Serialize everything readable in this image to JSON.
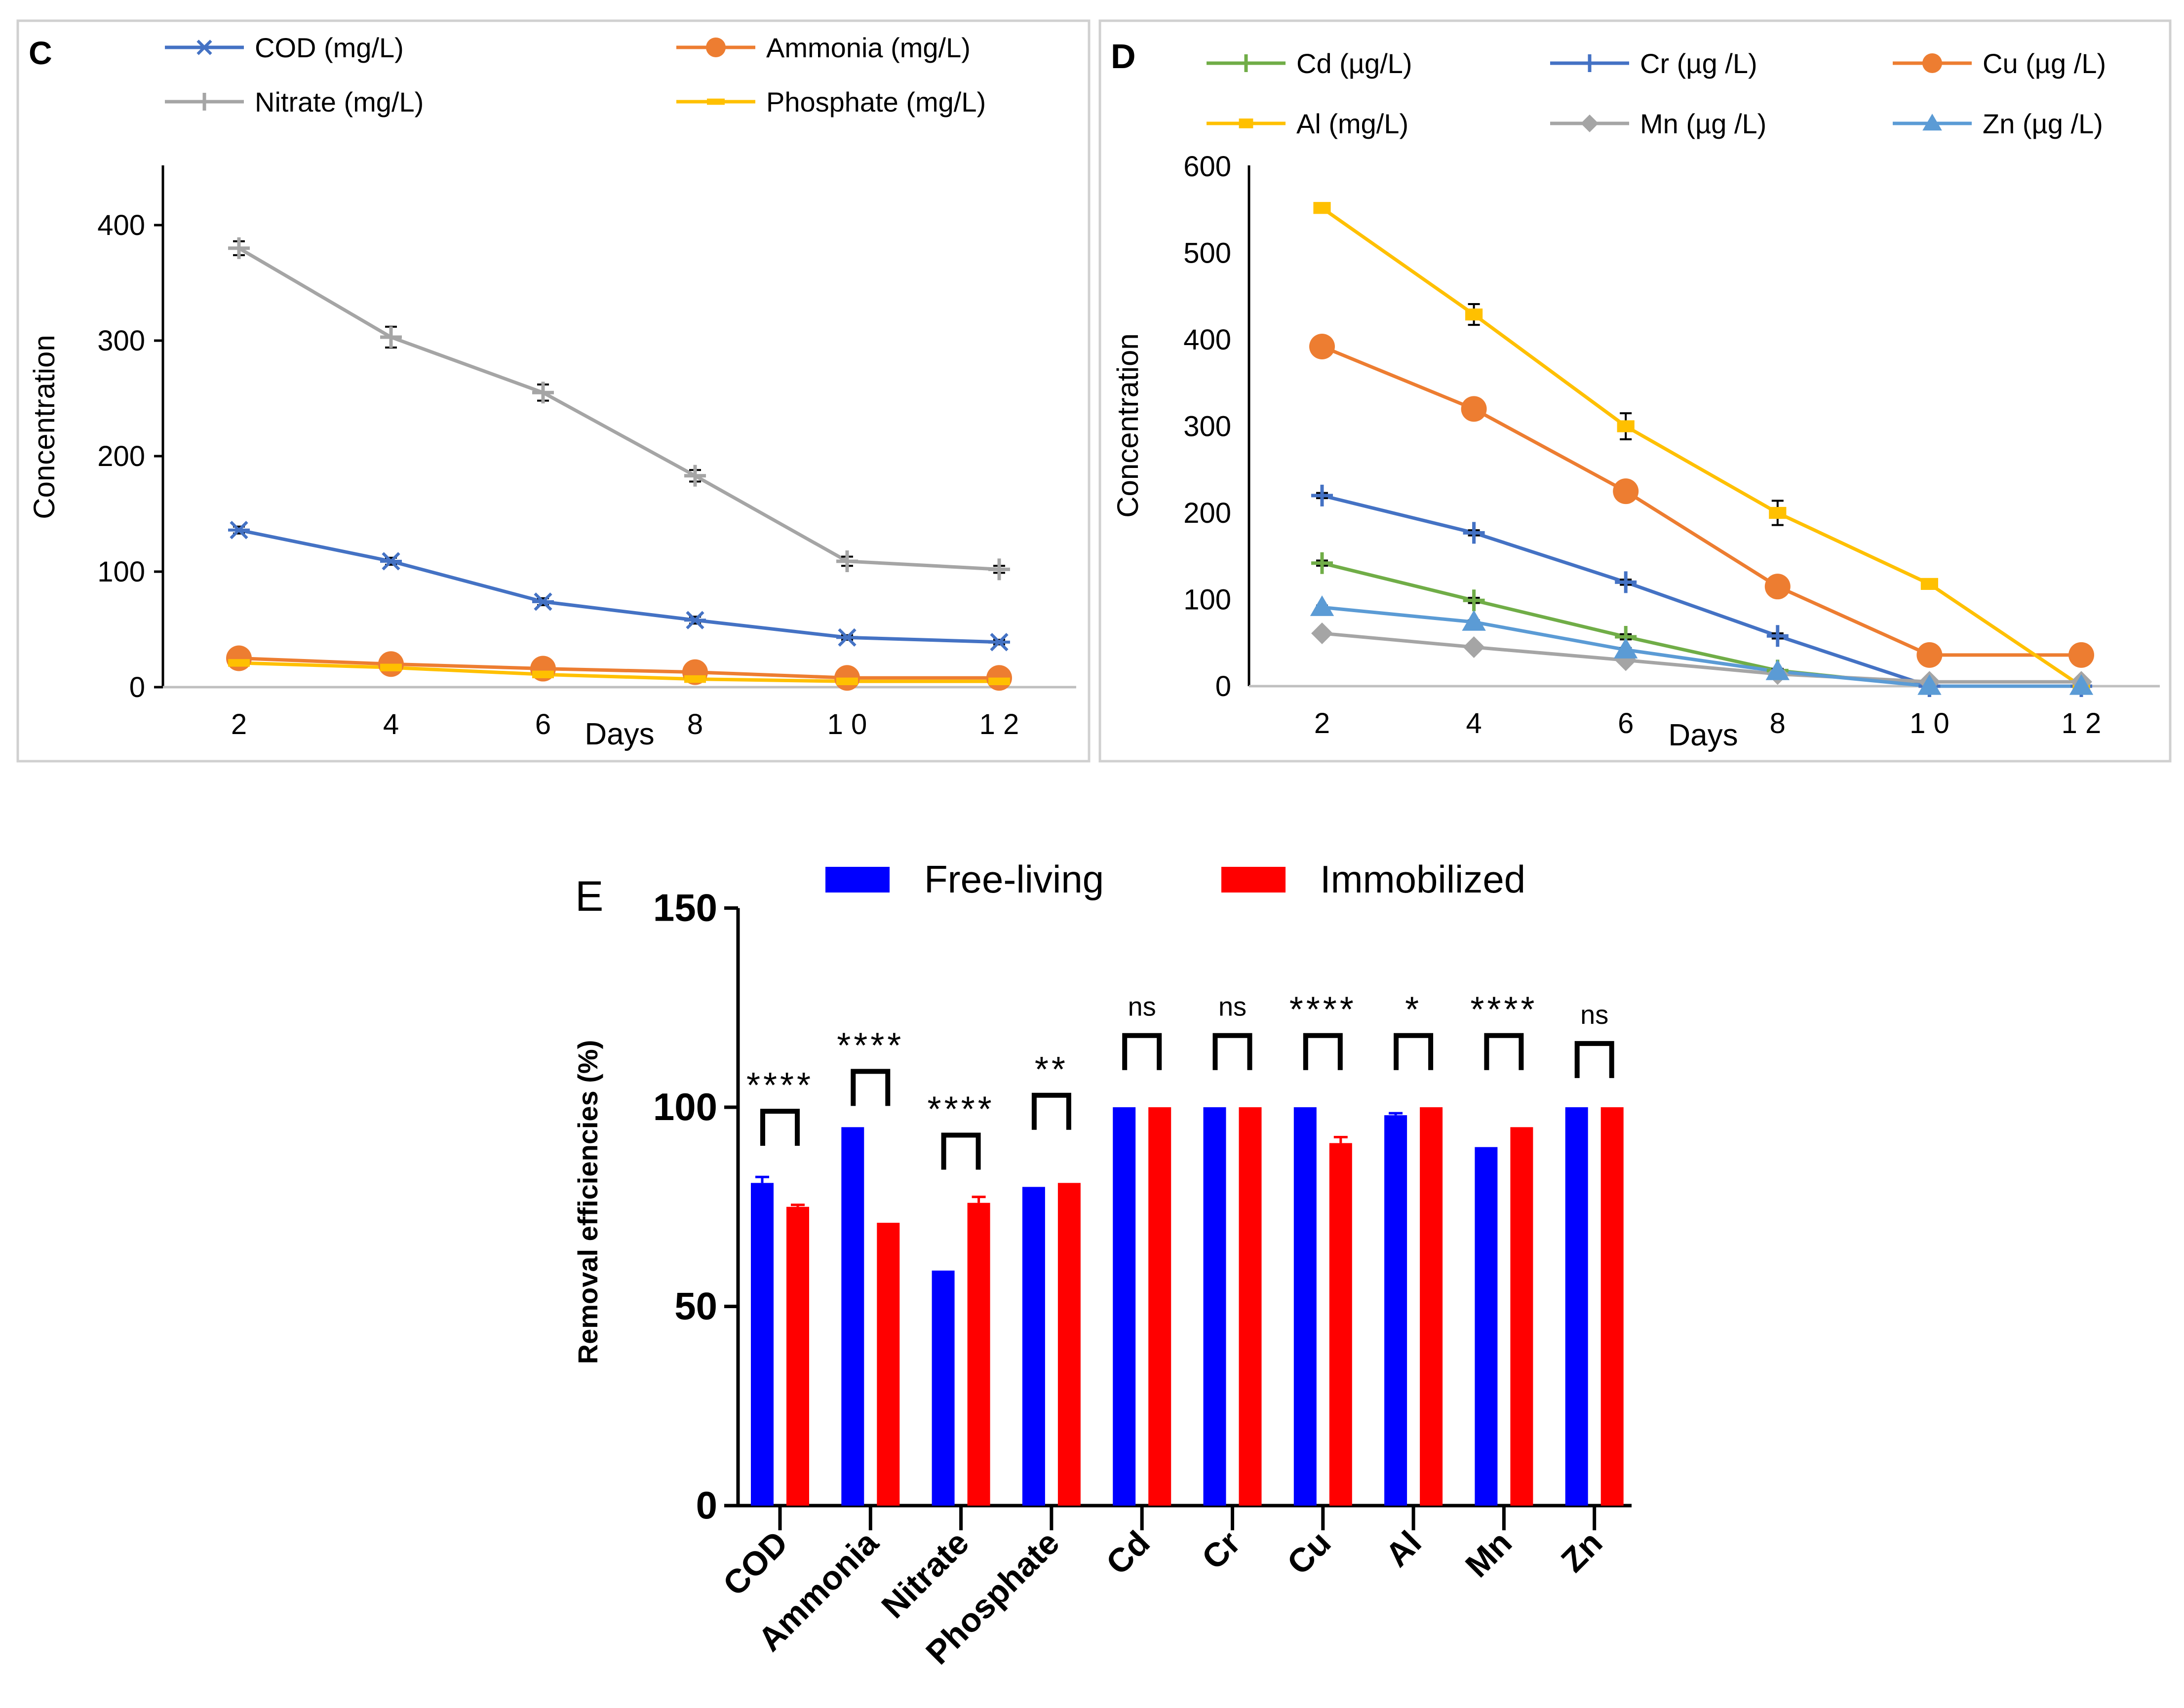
{
  "chart_data": [
    {
      "id": "C",
      "panel_label": "C",
      "type": "line",
      "xlabel": "Days",
      "ylabel": "Concentration",
      "x": [
        2,
        4,
        6,
        8,
        10,
        12
      ],
      "x_tick_labels": [
        "2",
        "4",
        "6",
        "8",
        "1 0",
        "1 2"
      ],
      "ylim": [
        0,
        450
      ],
      "y_ticks": [
        0,
        100,
        200,
        300,
        400
      ],
      "y_tick_labels": [
        "0",
        "100",
        "200",
        "300",
        "400"
      ],
      "series": [
        {
          "name": "COD (mg/L)",
          "color": "#4472c4",
          "marker": "asterisk",
          "values": [
            136,
            109,
            74,
            58,
            43,
            39
          ],
          "errors": [
            3,
            3,
            3,
            3,
            2,
            2
          ]
        },
        {
          "name": "Ammonia (mg/L)",
          "color": "#ed7d31",
          "marker": "circle",
          "values": [
            25,
            20,
            16,
            13,
            8,
            8
          ],
          "errors": [
            1,
            1,
            1,
            1,
            1,
            1
          ]
        },
        {
          "name": "Nitrate (mg/L)",
          "color": "#a5a5a5",
          "marker": "plus",
          "values": [
            380,
            303,
            255,
            183,
            109,
            102
          ],
          "errors": [
            6,
            9,
            7,
            5,
            4,
            3
          ]
        },
        {
          "name": "Phosphate  (mg/L)",
          "color": "#ffc000",
          "marker": "dash",
          "values": [
            21,
            17,
            11,
            7,
            5,
            5
          ],
          "errors": [
            1,
            1,
            1,
            1,
            1,
            1
          ]
        }
      ]
    },
    {
      "id": "D",
      "panel_label": "D",
      "type": "line",
      "xlabel": "Days",
      "ylabel": "Concentration",
      "x": [
        2,
        4,
        6,
        8,
        10,
        12
      ],
      "x_tick_labels": [
        "2",
        "4",
        "6",
        "8",
        "1 0",
        "1 2"
      ],
      "ylim": [
        0,
        600
      ],
      "y_ticks": [
        0,
        100,
        200,
        300,
        400,
        500,
        600
      ],
      "y_tick_labels": [
        "0",
        "100",
        "200",
        "300",
        "400",
        "500",
        "600"
      ],
      "series": [
        {
          "name": "Cd (µg/L)",
          "color": "#70ad47",
          "marker": "plus",
          "values": [
            142,
            99,
            57,
            18,
            0,
            0
          ],
          "errors": [
            3,
            3,
            3,
            2,
            0,
            0
          ]
        },
        {
          "name": "Cr (µg /L)",
          "color": "#4472c4",
          "marker": "plus",
          "values": [
            220,
            177,
            120,
            58,
            0,
            0
          ],
          "errors": [
            3,
            3,
            3,
            3,
            0,
            0
          ]
        },
        {
          "name": "Cu (µg /L)",
          "color": "#ed7d31",
          "marker": "circle",
          "values": [
            392,
            320,
            225,
            115,
            36,
            36
          ],
          "errors": [
            2,
            2,
            2,
            2,
            1,
            1
          ]
        },
        {
          "name": "Al (mg/L)",
          "color": "#ffc000",
          "marker": "square",
          "values": [
            552,
            429,
            300,
            200,
            118,
            0
          ],
          "errors": [
            4,
            12,
            15,
            14,
            5,
            0
          ]
        },
        {
          "name": "Mn (µg /L)",
          "color": "#a5a5a5",
          "marker": "diamond",
          "values": [
            61,
            45,
            30,
            14,
            5,
            5
          ],
          "errors": [
            1,
            1,
            1,
            1,
            0,
            0
          ]
        },
        {
          "name": "Zn (µg /L)",
          "color": "#5b9bd5",
          "marker": "triangle",
          "values": [
            91,
            74,
            42,
            17,
            0,
            0
          ],
          "errors": [
            2,
            2,
            2,
            2,
            0,
            0
          ]
        }
      ]
    },
    {
      "id": "E",
      "panel_label": "E",
      "type": "bar",
      "ylabel": "Removal efficiencies  (%)",
      "categories": [
        "COD",
        "Ammonia",
        "Nitrate",
        "Phosphate",
        "Cd",
        "Cr",
        "Cu",
        "Al",
        "Mn",
        "Zn"
      ],
      "ylim": [
        0,
        150
      ],
      "y_ticks": [
        0,
        50,
        100,
        150
      ],
      "y_tick_labels": [
        "0",
        "50",
        "100",
        "150"
      ],
      "series": [
        {
          "name": "Free-living",
          "color": "#0000ff",
          "values": [
            81,
            95,
            59,
            80,
            100,
            100,
            100,
            98,
            90,
            100
          ],
          "errors": [
            1.5,
            0,
            0,
            0,
            0,
            0,
            0,
            0.5,
            0,
            0
          ]
        },
        {
          "name": "Immobilized",
          "color": "#ff0000",
          "values": [
            75,
            71,
            76,
            81,
            100,
            100,
            91,
            100,
            95,
            100
          ],
          "errors": [
            0.5,
            0,
            1.5,
            0,
            0,
            0,
            1.5,
            0,
            0,
            0
          ]
        }
      ],
      "significance": [
        "****",
        "****",
        "****",
        "**",
        "ns",
        "ns",
        "****",
        "*",
        "****",
        "ns"
      ],
      "bracket_values": [
        99,
        109,
        93,
        103,
        118,
        118,
        118,
        118,
        118,
        116
      ]
    }
  ]
}
